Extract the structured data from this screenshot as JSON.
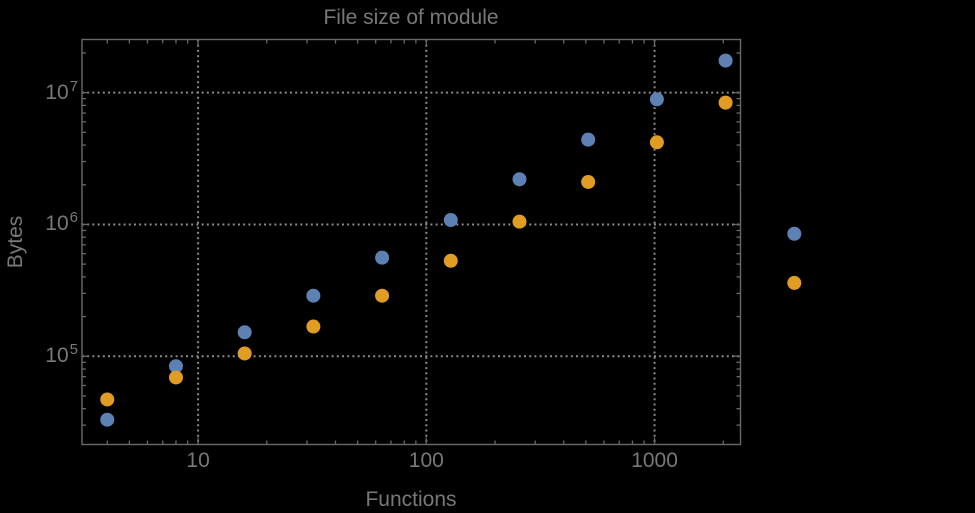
{
  "chart_data": {
    "type": "scatter",
    "title": "File size of module",
    "xlabel": "Functions",
    "ylabel": "Bytes",
    "x_scale": "log",
    "y_scale": "log",
    "xlim": [
      3.1,
      2380
    ],
    "ylim": [
      21400,
      25300000
    ],
    "grid": "major gridlines only, dotted gray, log-log frame with inward minor ticks on all four sides",
    "legend_position": "none",
    "plot_range_clipping": false,
    "x_major_ticks": [
      10,
      100,
      1000
    ],
    "x_major_tick_labels": [
      "10",
      "100",
      "1000"
    ],
    "y_major_ticks": [
      100000,
      1000000,
      10000000
    ],
    "y_major_tick_labels": [
      {
        "base": "10",
        "exp": "5"
      },
      {
        "base": "10",
        "exp": "6"
      },
      {
        "base": "10",
        "exp": "7"
      }
    ],
    "x": [
      4,
      8,
      16,
      32,
      64,
      128,
      256,
      512,
      1024,
      2048,
      4096
    ],
    "series": [
      {
        "name": "series-1-blue",
        "color": "#5E81B5",
        "values": [
          33000,
          84000,
          152000,
          288000,
          560000,
          1080000,
          2200000,
          4400000,
          8900000,
          17500000,
          850000
        ]
      },
      {
        "name": "series-2-orange",
        "color": "#E19C24",
        "values": [
          47000,
          69000,
          105000,
          168000,
          288000,
          530000,
          1050000,
          2100000,
          4200000,
          8400000,
          360000
        ]
      }
    ],
    "marker_diameter": 14
  },
  "colors": {
    "background": "#000000",
    "frame": "#696969",
    "gridline": "#8A8A8A",
    "label_text": "#787878"
  }
}
